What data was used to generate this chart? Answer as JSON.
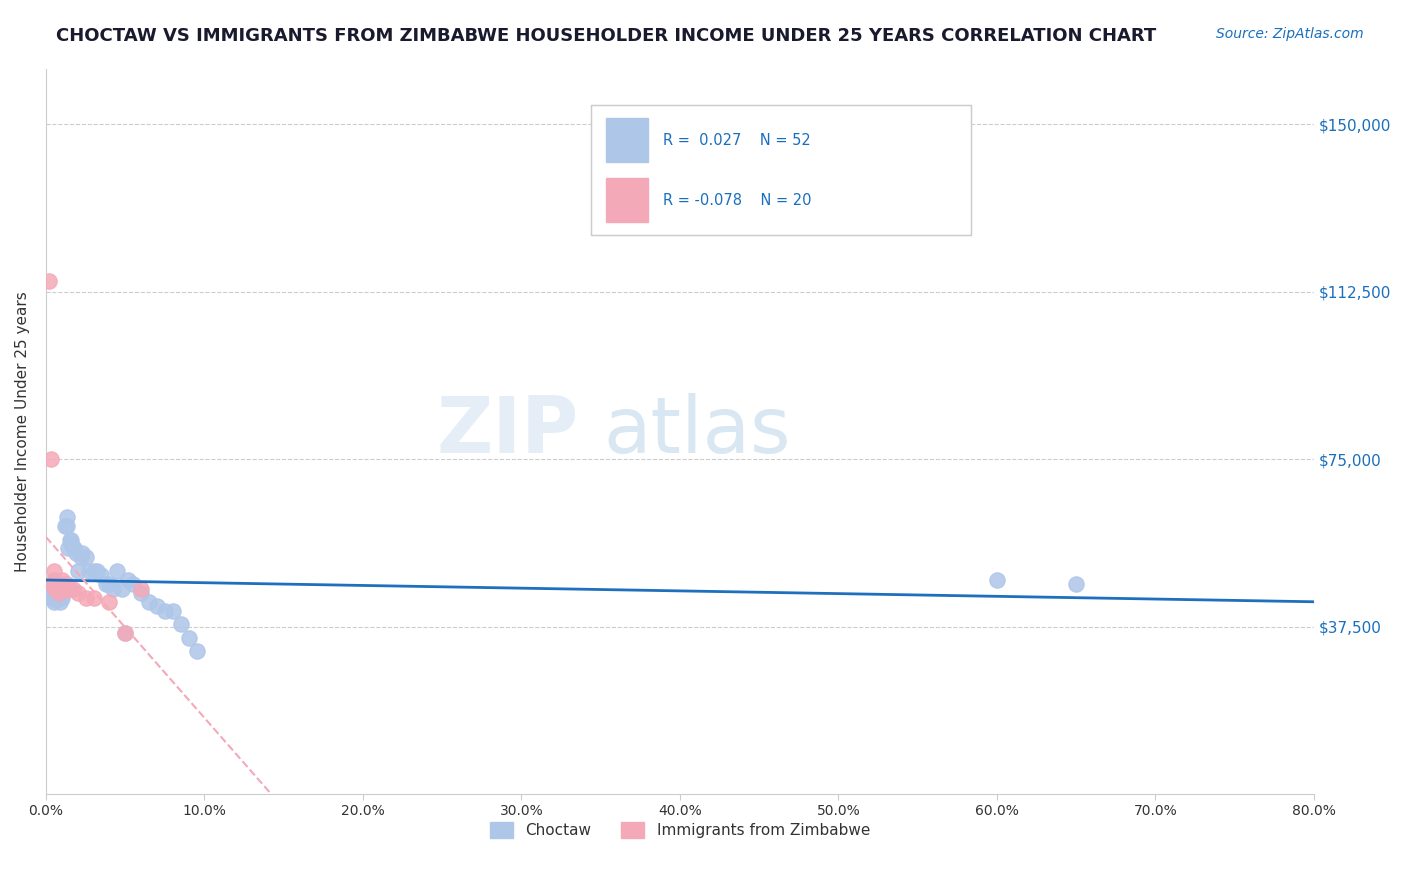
{
  "title": "CHOCTAW VS IMMIGRANTS FROM ZIMBABWE HOUSEHOLDER INCOME UNDER 25 YEARS CORRELATION CHART",
  "source": "Source: ZipAtlas.com",
  "ylabel": "Householder Income Under 25 years",
  "ytick_labels": [
    "$150,000",
    "$112,500",
    "$75,000",
    "$37,500"
  ],
  "ytick_values": [
    150000,
    112500,
    75000,
    37500
  ],
  "ylim": [
    0,
    162500
  ],
  "xlim": [
    0.0,
    0.8
  ],
  "background_color": "#ffffff",
  "watermark_zip": "ZIP",
  "watermark_atlas": "atlas",
  "choctaw_color": "#aec6e8",
  "zimbabwe_color": "#f4a9b8",
  "trend_choctaw_color": "#1f6fbf",
  "trend_zimbabwe_color": "#f4a9b8",
  "choctaw_x": [
    0.002,
    0.003,
    0.004,
    0.005,
    0.005,
    0.006,
    0.006,
    0.007,
    0.007,
    0.008,
    0.008,
    0.009,
    0.009,
    0.01,
    0.01,
    0.011,
    0.012,
    0.013,
    0.013,
    0.014,
    0.015,
    0.016,
    0.016,
    0.017,
    0.018,
    0.019,
    0.02,
    0.022,
    0.023,
    0.025,
    0.027,
    0.03,
    0.032,
    0.035,
    0.038,
    0.04,
    0.042,
    0.045,
    0.048,
    0.05,
    0.052,
    0.055,
    0.06,
    0.065,
    0.07,
    0.075,
    0.08,
    0.085,
    0.09,
    0.095,
    0.6,
    0.65
  ],
  "choctaw_y": [
    46000,
    44000,
    45000,
    43000,
    47000,
    44500,
    46000,
    43500,
    45000,
    44000,
    46000,
    45000,
    43000,
    44000,
    46000,
    45000,
    60000,
    60000,
    62000,
    55000,
    57000,
    57000,
    56000,
    55000,
    55000,
    54000,
    50000,
    53000,
    54000,
    53000,
    50000,
    50000,
    50000,
    49000,
    47000,
    47000,
    46000,
    50000,
    46000,
    36000,
    48000,
    47000,
    45000,
    43000,
    42000,
    41000,
    41000,
    38000,
    35000,
    32000,
    48000,
    47000
  ],
  "zimbabwe_x": [
    0.002,
    0.003,
    0.004,
    0.005,
    0.005,
    0.006,
    0.007,
    0.008,
    0.01,
    0.012,
    0.013,
    0.014,
    0.015,
    0.017,
    0.02,
    0.025,
    0.03,
    0.04,
    0.05,
    0.06
  ],
  "zimbabwe_y": [
    115000,
    75000,
    47000,
    50000,
    48000,
    46000,
    47000,
    45000,
    48000,
    47000,
    47000,
    46000,
    46000,
    46000,
    45000,
    44000,
    44000,
    43000,
    36000,
    46000
  ],
  "xtick_positions": [
    0.0,
    0.1,
    0.2,
    0.3,
    0.4,
    0.5,
    0.6,
    0.7,
    0.8
  ],
  "xtick_labels": [
    "0.0%",
    "10.0%",
    "20.0%",
    "30.0%",
    "40.0%",
    "50.0%",
    "60.0%",
    "70.0%",
    "80.0%"
  ]
}
